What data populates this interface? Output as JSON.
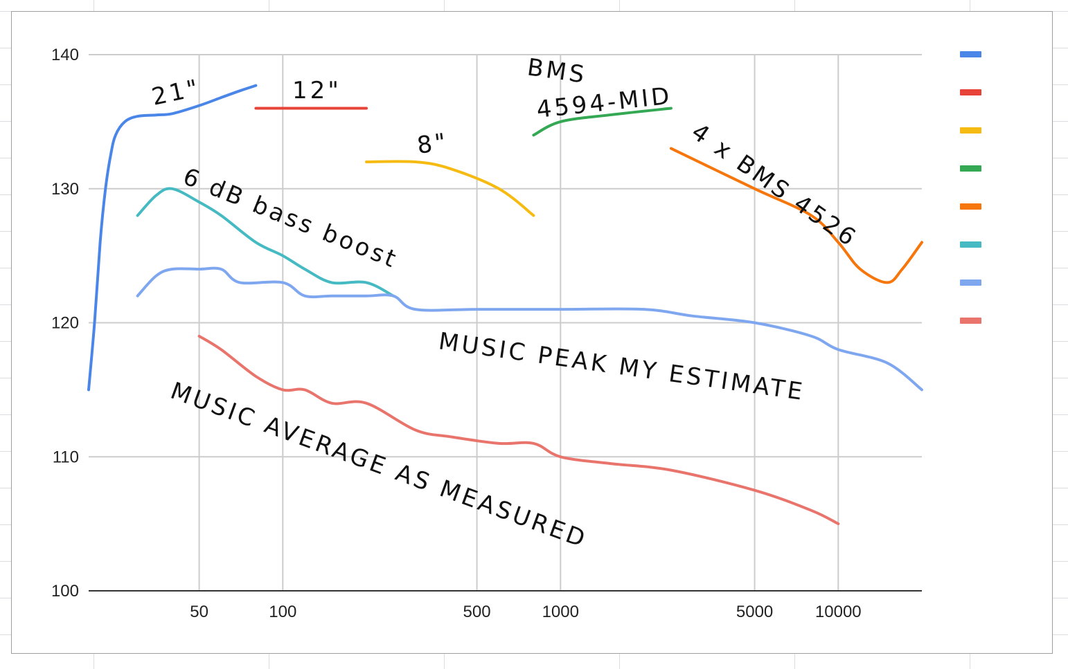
{
  "chart_data": {
    "type": "line",
    "x_scale": "log",
    "xlim": [
      20,
      20000
    ],
    "ylim": [
      100,
      140
    ],
    "x_ticks": [
      50,
      100,
      500,
      1000,
      5000,
      10000
    ],
    "x_tick_labels": [
      "50",
      "100",
      "500",
      "1000",
      "5000",
      "10000"
    ],
    "y_ticks": [
      100,
      110,
      120,
      130,
      140
    ],
    "y_tick_labels": [
      "100",
      "110",
      "120",
      "130",
      "140"
    ],
    "grid": true,
    "legend": "right",
    "title": "",
    "xlabel": "",
    "ylabel": "",
    "series": [
      {
        "name": "",
        "label_text": "21\"",
        "color": "#4a86e8",
        "x": [
          20,
          21,
          22,
          23,
          24,
          25,
          27,
          30,
          35,
          40,
          50,
          60,
          70,
          80
        ],
        "y": [
          115,
          120,
          126,
          130,
          132.5,
          134,
          135,
          135.4,
          135.5,
          135.6,
          136.2,
          136.8,
          137.3,
          137.7
        ]
      },
      {
        "name": "",
        "label_text": "12\"",
        "color": "#e84338",
        "x": [
          80,
          200
        ],
        "y": [
          136,
          136
        ]
      },
      {
        "name": "",
        "label_text": "8\"",
        "color": "#f6bb13",
        "x": [
          200,
          300,
          400,
          600,
          800
        ],
        "y": [
          132,
          132,
          131.5,
          130,
          128
        ]
      },
      {
        "name": "",
        "label_text": "BMS 4594-MID",
        "color": "#34a853",
        "x": [
          800,
          1000,
          1500,
          2500
        ],
        "y": [
          134,
          135,
          135.5,
          136
        ]
      },
      {
        "name": "",
        "label_text": "4 x BMS 4526",
        "color": "#f6760c",
        "x": [
          2500,
          5000,
          8000,
          10000,
          12000,
          15000,
          17000,
          20000
        ],
        "y": [
          133,
          130,
          128,
          126,
          124,
          123,
          124,
          126
        ]
      },
      {
        "name": "",
        "label_text": "6 dB bass boost",
        "color": "#45bac3",
        "x": [
          30,
          35,
          40,
          50,
          60,
          80,
          100,
          120,
          150,
          200,
          250
        ],
        "y": [
          128,
          129.5,
          130,
          129,
          128,
          126,
          125,
          124,
          123,
          123,
          122
        ]
      },
      {
        "name": "",
        "label_text": "MUSIC PEAK MY ESTIMATE",
        "color": "#7fa7f0",
        "x": [
          30,
          35,
          40,
          50,
          60,
          70,
          100,
          120,
          150,
          200,
          250,
          300,
          500,
          1000,
          2000,
          3000,
          5000,
          8000,
          10000,
          15000,
          20000
        ],
        "y": [
          122,
          123.5,
          124,
          124,
          124,
          123,
          123,
          122,
          122,
          122,
          122,
          121,
          121,
          121,
          121,
          120.5,
          120,
          119,
          118,
          117,
          115
        ]
      },
      {
        "name": "",
        "label_text": "MUSIC AVERAGE AS MEASURED",
        "color": "#e8746c",
        "x": [
          50,
          60,
          80,
          100,
          120,
          150,
          200,
          300,
          400,
          600,
          800,
          1000,
          1500,
          2500,
          5000,
          8000,
          10000
        ],
        "y": [
          119,
          118,
          116,
          115,
          115,
          114,
          114,
          112,
          111.5,
          111,
          111,
          110,
          109.5,
          109,
          107.5,
          106,
          105
        ]
      }
    ],
    "annotations": [
      {
        "text": "21\"",
        "series": 0
      },
      {
        "text": "12\"",
        "series": 1
      },
      {
        "text": "8\"",
        "series": 2
      },
      {
        "text": "BMS",
        "series": 3
      },
      {
        "text": "4594-MID",
        "series": 3
      },
      {
        "text": "4 x BMS 4526",
        "series": 4
      },
      {
        "text": "6 dB bass boost",
        "series": 5
      },
      {
        "text": "MUSIC PEAK MY ESTIMATE",
        "series": 6
      },
      {
        "text": "MUSIC AVERAGE AS MEASURED",
        "series": 7
      }
    ]
  }
}
